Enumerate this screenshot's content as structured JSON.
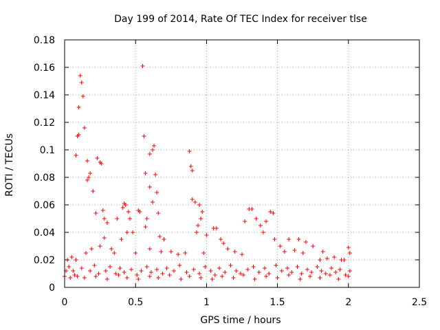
{
  "chart_data": {
    "type": "scatter",
    "title": "Day 199 of 2014, Rate Of TEC Index for receiver tlse",
    "xlabel": "GPS time / hours",
    "ylabel": "ROTI / TECUs",
    "xlim": [
      0,
      2.5
    ],
    "ylim": [
      0,
      0.18
    ],
    "xticks": [
      0,
      0.5,
      1,
      1.5,
      2,
      2.5
    ],
    "xtick_labels": [
      "0",
      "0.5",
      "1",
      "1.5",
      "2",
      "2.5"
    ],
    "yticks": [
      0,
      0.02,
      0.04,
      0.06,
      0.08,
      0.1,
      0.12,
      0.14,
      0.16,
      0.18
    ],
    "ytick_labels": [
      "0",
      "0.02",
      "0.04",
      "0.06",
      "0.08",
      "0.1",
      "0.12",
      "0.14",
      "0.16",
      "0.18"
    ],
    "grid": true,
    "marker": "+",
    "color": "#ff0000",
    "series": [
      {
        "name": "ROTI",
        "points": [
          [
            0.11,
            0.154
          ],
          [
            0.12,
            0.149
          ],
          [
            0.13,
            0.139
          ],
          [
            0.1,
            0.131
          ],
          [
            0.14,
            0.116
          ],
          [
            0.1,
            0.111
          ],
          [
            0.09,
            0.11
          ],
          [
            0.08,
            0.096
          ],
          [
            0.16,
            0.092
          ],
          [
            0.18,
            0.083
          ],
          [
            0.17,
            0.08
          ],
          [
            0.16,
            0.078
          ],
          [
            0.2,
            0.07
          ],
          [
            0.23,
            0.094
          ],
          [
            0.25,
            0.091
          ],
          [
            0.26,
            0.09
          ],
          [
            0.27,
            0.056
          ],
          [
            0.28,
            0.05
          ],
          [
            0.22,
            0.054
          ],
          [
            0.3,
            0.047
          ],
          [
            0.28,
            0.036
          ],
          [
            0.25,
            0.03
          ],
          [
            0.55,
            0.161
          ],
          [
            0.56,
            0.11
          ],
          [
            0.6,
            0.097
          ],
          [
            0.62,
            0.1
          ],
          [
            0.63,
            0.103
          ],
          [
            0.57,
            0.083
          ],
          [
            0.64,
            0.082
          ],
          [
            0.6,
            0.073
          ],
          [
            0.65,
            0.069
          ],
          [
            0.62,
            0.062
          ],
          [
            0.53,
            0.055
          ],
          [
            0.52,
            0.056
          ],
          [
            0.66,
            0.054
          ],
          [
            0.58,
            0.05
          ],
          [
            0.57,
            0.044
          ],
          [
            0.67,
            0.037
          ],
          [
            0.7,
            0.035
          ],
          [
            0.37,
            0.05
          ],
          [
            0.41,
            0.058
          ],
          [
            0.42,
            0.061
          ],
          [
            0.43,
            0.06
          ],
          [
            0.45,
            0.055
          ],
          [
            0.46,
            0.05
          ],
          [
            0.48,
            0.04
          ],
          [
            0.44,
            0.04
          ],
          [
            0.4,
            0.035
          ],
          [
            0.88,
            0.099
          ],
          [
            0.89,
            0.088
          ],
          [
            0.9,
            0.085
          ],
          [
            0.9,
            0.064
          ],
          [
            0.92,
            0.062
          ],
          [
            0.95,
            0.06
          ],
          [
            0.97,
            0.055
          ],
          [
            0.96,
            0.05
          ],
          [
            0.94,
            0.045
          ],
          [
            0.93,
            0.04
          ],
          [
            1.0,
            0.038
          ],
          [
            1.05,
            0.043
          ],
          [
            1.07,
            0.043
          ],
          [
            1.1,
            0.035
          ],
          [
            1.12,
            0.032
          ],
          [
            1.27,
            0.048
          ],
          [
            1.3,
            0.057
          ],
          [
            1.32,
            0.057
          ],
          [
            1.35,
            0.05
          ],
          [
            1.38,
            0.045
          ],
          [
            1.4,
            0.04
          ],
          [
            1.45,
            0.055
          ],
          [
            1.47,
            0.054
          ],
          [
            1.42,
            0.048
          ],
          [
            1.48,
            0.035
          ],
          [
            1.52,
            0.03
          ],
          [
            1.58,
            0.035
          ],
          [
            1.65,
            0.035
          ],
          [
            1.7,
            0.033
          ],
          [
            1.75,
            0.03
          ],
          [
            1.82,
            0.026
          ],
          [
            1.9,
            0.022
          ],
          [
            1.97,
            0.02
          ],
          [
            2.0,
            0.029
          ],
          [
            2.01,
            0.025
          ],
          [
            0.02,
            0.02
          ],
          [
            0.05,
            0.022
          ],
          [
            0.08,
            0.02
          ],
          [
            0.15,
            0.025
          ],
          [
            0.19,
            0.028
          ],
          [
            0.33,
            0.028
          ],
          [
            0.35,
            0.025
          ],
          [
            0.5,
            0.025
          ],
          [
            0.6,
            0.028
          ],
          [
            0.68,
            0.026
          ],
          [
            0.75,
            0.026
          ],
          [
            0.8,
            0.024
          ],
          [
            0.85,
            0.025
          ],
          [
            0.98,
            0.025
          ],
          [
            1.15,
            0.028
          ],
          [
            1.2,
            0.026
          ],
          [
            1.25,
            0.024
          ],
          [
            1.55,
            0.026
          ],
          [
            1.62,
            0.027
          ],
          [
            1.68,
            0.025
          ],
          [
            1.8,
            0.02
          ],
          [
            1.85,
            0.021
          ],
          [
            1.95,
            0.02
          ],
          [
            0.01,
            0.012
          ],
          [
            0.03,
            0.015
          ],
          [
            0.06,
            0.012
          ],
          [
            0.09,
            0.008
          ],
          [
            0.12,
            0.014
          ],
          [
            0.18,
            0.012
          ],
          [
            0.21,
            0.016
          ],
          [
            0.24,
            0.01
          ],
          [
            0.29,
            0.012
          ],
          [
            0.32,
            0.015
          ],
          [
            0.36,
            0.01
          ],
          [
            0.39,
            0.014
          ],
          [
            0.42,
            0.011
          ],
          [
            0.47,
            0.013
          ],
          [
            0.51,
            0.009
          ],
          [
            0.54,
            0.012
          ],
          [
            0.58,
            0.015
          ],
          [
            0.61,
            0.011
          ],
          [
            0.65,
            0.013
          ],
          [
            0.69,
            0.01
          ],
          [
            0.72,
            0.014
          ],
          [
            0.77,
            0.012
          ],
          [
            0.81,
            0.016
          ],
          [
            0.86,
            0.011
          ],
          [
            0.91,
            0.013
          ],
          [
            0.95,
            0.01
          ],
          [
            0.99,
            0.015
          ],
          [
            1.03,
            0.012
          ],
          [
            1.06,
            0.009
          ],
          [
            1.09,
            0.014
          ],
          [
            1.13,
            0.011
          ],
          [
            1.17,
            0.016
          ],
          [
            1.21,
            0.012
          ],
          [
            1.24,
            0.01
          ],
          [
            1.29,
            0.013
          ],
          [
            1.33,
            0.015
          ],
          [
            1.37,
            0.011
          ],
          [
            1.41,
            0.014
          ],
          [
            1.44,
            0.01
          ],
          [
            1.49,
            0.016
          ],
          [
            1.53,
            0.012
          ],
          [
            1.57,
            0.014
          ],
          [
            1.6,
            0.011
          ],
          [
            1.64,
            0.015
          ],
          [
            1.67,
            0.01
          ],
          [
            1.71,
            0.013
          ],
          [
            1.74,
            0.011
          ],
          [
            1.78,
            0.015
          ],
          [
            1.81,
            0.012
          ],
          [
            1.84,
            0.01
          ],
          [
            1.88,
            0.014
          ],
          [
            1.91,
            0.011
          ],
          [
            1.94,
            0.013
          ],
          [
            1.98,
            0.009
          ],
          [
            2.01,
            0.012
          ],
          [
            0.0,
            0.008
          ],
          [
            0.04,
            0.007
          ],
          [
            0.07,
            0.009
          ],
          [
            0.14,
            0.007
          ],
          [
            0.22,
            0.008
          ],
          [
            0.3,
            0.006
          ],
          [
            0.38,
            0.009
          ],
          [
            0.44,
            0.007
          ],
          [
            0.52,
            0.006
          ],
          [
            0.6,
            0.008
          ],
          [
            0.66,
            0.007
          ],
          [
            0.74,
            0.009
          ],
          [
            0.82,
            0.006
          ],
          [
            0.88,
            0.008
          ],
          [
            0.96,
            0.007
          ],
          [
            1.04,
            0.006
          ],
          [
            1.11,
            0.008
          ],
          [
            1.19,
            0.007
          ],
          [
            1.26,
            0.009
          ],
          [
            1.34,
            0.006
          ],
          [
            1.42,
            0.008
          ],
          [
            1.5,
            0.007
          ],
          [
            1.58,
            0.009
          ],
          [
            1.66,
            0.006
          ],
          [
            1.73,
            0.008
          ],
          [
            1.8,
            0.007
          ],
          [
            1.87,
            0.009
          ],
          [
            1.93,
            0.006
          ],
          [
            2.0,
            0.008
          ]
        ]
      }
    ]
  }
}
